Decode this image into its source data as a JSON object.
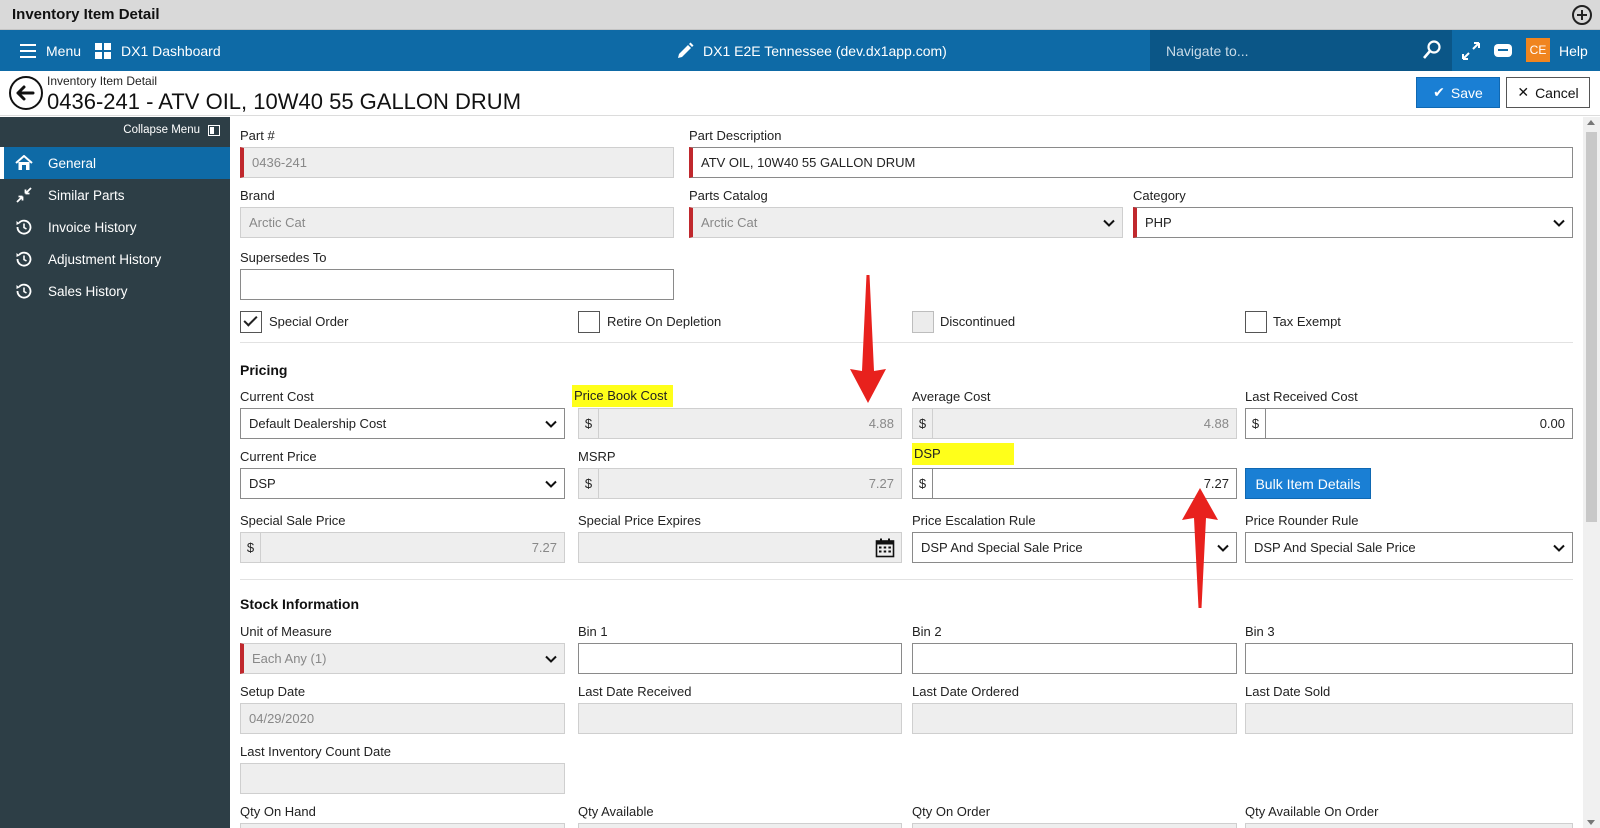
{
  "window": {
    "title": "Inventory Item Detail"
  },
  "nav": {
    "menu_label": "Menu",
    "dashboard_label": "DX1 Dashboard",
    "env_label": "DX1 E2E Tennessee (dev.dx1app.com)",
    "search_placeholder": "Navigate to...",
    "avatar_initials": "CE",
    "help_label": "Help"
  },
  "page": {
    "subtitle": "Inventory Item Detail",
    "title": "0436-241 - ATV OIL, 10W40 55 GALLON DRUM",
    "save_label": "Save",
    "cancel_label": "Cancel"
  },
  "sidebar": {
    "collapse_label": "Collapse Menu",
    "items": [
      {
        "label": "General",
        "icon": "home-icon",
        "active": true
      },
      {
        "label": "Similar Parts",
        "icon": "compress-arrows-icon",
        "active": false
      },
      {
        "label": "Invoice History",
        "icon": "history-icon",
        "active": false
      },
      {
        "label": "Adjustment History",
        "icon": "history-icon",
        "active": false
      },
      {
        "label": "Sales History",
        "icon": "history-icon",
        "active": false
      }
    ]
  },
  "general": {
    "part_no": {
      "label": "Part #",
      "value": "0436-241"
    },
    "part_desc": {
      "label": "Part Description",
      "value": "ATV OIL, 10W40  55 GALLON DRUM"
    },
    "brand": {
      "label": "Brand",
      "value": "Arctic Cat"
    },
    "parts_catalog": {
      "label": "Parts Catalog",
      "value": "Arctic Cat"
    },
    "category": {
      "label": "Category",
      "value": "PHP"
    },
    "supersedes": {
      "label": "Supersedes To",
      "value": ""
    },
    "checks": [
      {
        "label": "Special Order",
        "checked": true,
        "disabled": false
      },
      {
        "label": "Retire On Depletion",
        "checked": false,
        "disabled": false
      },
      {
        "label": "Discontinued",
        "checked": false,
        "disabled": true
      },
      {
        "label": "Tax Exempt",
        "checked": false,
        "disabled": false
      }
    ]
  },
  "pricing": {
    "heading": "Pricing",
    "currency": "$",
    "current_cost": {
      "label": "Current Cost",
      "value": "Default Dealership Cost"
    },
    "price_book_cost": {
      "label": "Price Book Cost",
      "value": "4.88"
    },
    "average_cost": {
      "label": "Average Cost",
      "value": "4.88"
    },
    "last_received_cost": {
      "label": "Last Received Cost",
      "value": "0.00"
    },
    "current_price": {
      "label": "Current Price",
      "value": "DSP"
    },
    "msrp": {
      "label": "MSRP",
      "value": "7.27"
    },
    "dsp": {
      "label": "DSP",
      "value": "7.27"
    },
    "bulk_label": "Bulk Item Details",
    "special_sale_price": {
      "label": "Special Sale Price",
      "value": "7.27"
    },
    "special_price_expires": {
      "label": "Special Price Expires",
      "value": ""
    },
    "escalation_rule": {
      "label": "Price Escalation Rule",
      "value": "DSP And Special Sale Price"
    },
    "rounder_rule": {
      "label": "Price Rounder Rule",
      "value": "DSP And Special Sale Price"
    },
    "highlight_color": "#ffff1a",
    "annotation_color": "#e8211d"
  },
  "stock": {
    "heading": "Stock Information",
    "uom": {
      "label": "Unit of Measure",
      "value": "Each Any (1)"
    },
    "bin1": {
      "label": "Bin 1",
      "value": ""
    },
    "bin2": {
      "label": "Bin 2",
      "value": ""
    },
    "bin3": {
      "label": "Bin 3",
      "value": ""
    },
    "setup_date": {
      "label": "Setup Date",
      "value": "04/29/2020"
    },
    "last_date_received": {
      "label": "Last Date Received",
      "value": ""
    },
    "last_date_ordered": {
      "label": "Last Date Ordered",
      "value": ""
    },
    "last_date_sold": {
      "label": "Last Date Sold",
      "value": ""
    },
    "last_inventory_count": {
      "label": "Last Inventory Count Date",
      "value": ""
    },
    "qty_on_hand": {
      "label": "Qty On Hand"
    },
    "qty_available": {
      "label": "Qty Available"
    },
    "qty_on_order": {
      "label": "Qty On Order"
    },
    "qty_available_on_order": {
      "label": "Qty Available On Order"
    }
  }
}
